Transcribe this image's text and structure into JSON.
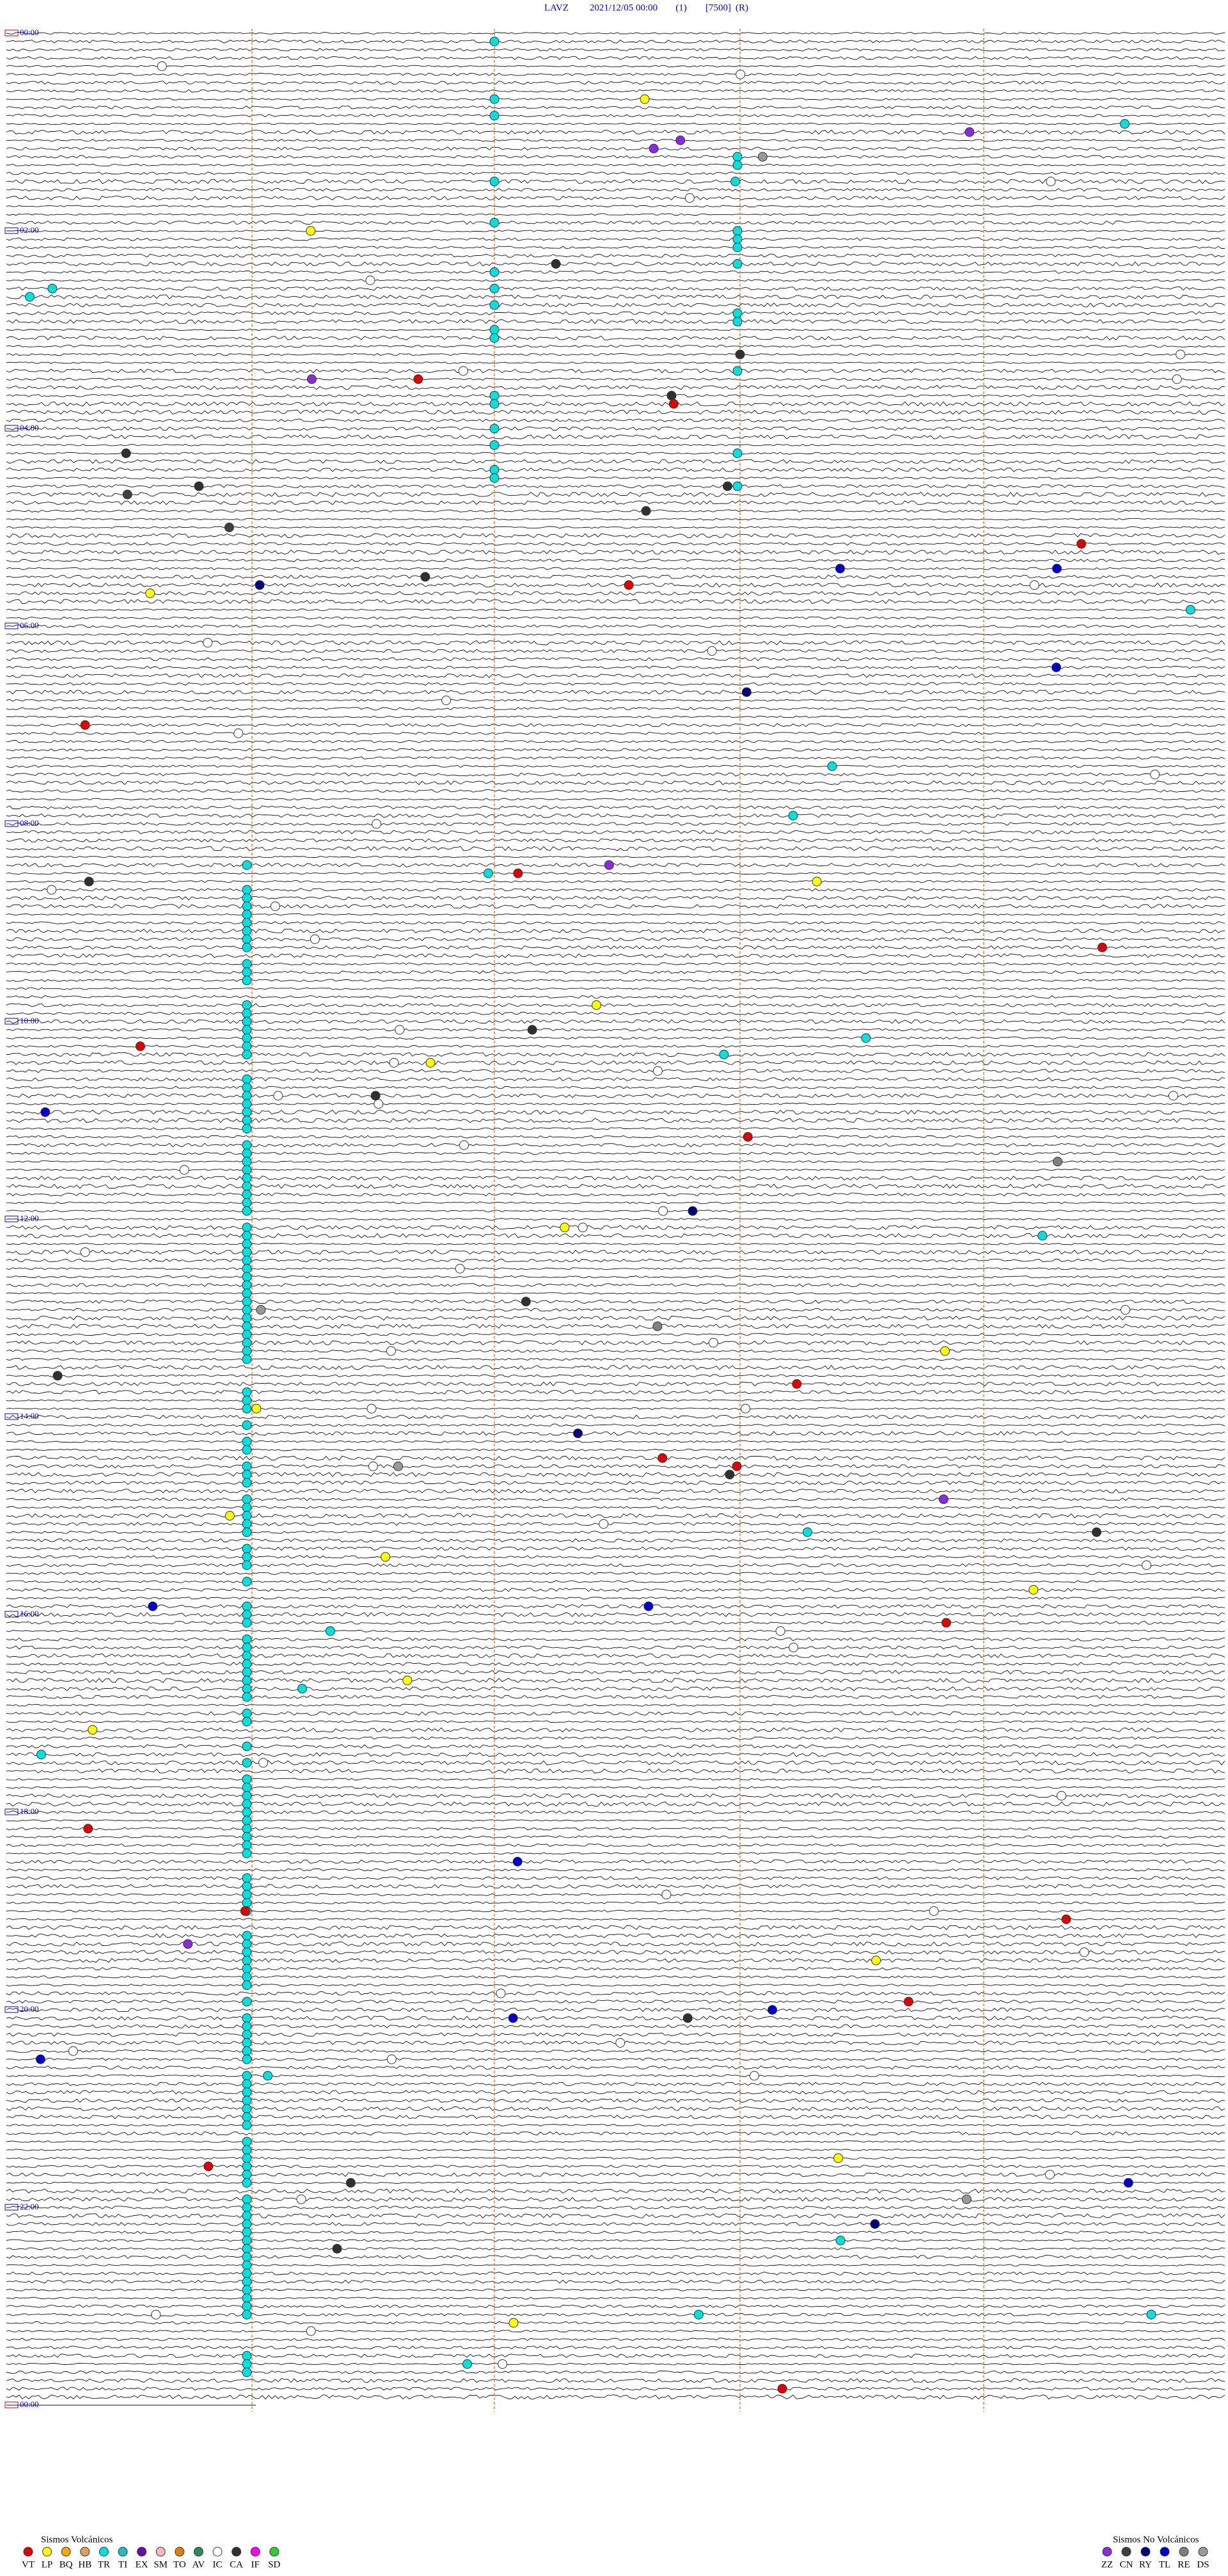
{
  "header": {
    "station": "LAVZ",
    "datetime": "2021/12/05 00:00",
    "channel": "(1)",
    "scale": "[7500]",
    "mode": "(R)"
  },
  "time_labels": [
    "00:00",
    "02:00",
    "04:00",
    "06:00",
    "08:00",
    "10:00",
    "12:00",
    "14:00",
    "16:00",
    "18:00",
    "20:00",
    "22:00",
    "00:00"
  ],
  "legend": {
    "volcanic": {
      "title": "Sismos Volcánicos",
      "items": [
        {
          "code": "VT",
          "color": "#e00000"
        },
        {
          "code": "LP",
          "color": "#ffff00"
        },
        {
          "code": "BQ",
          "color": "#ffa500"
        },
        {
          "code": "HB",
          "color": "#d9a066"
        },
        {
          "code": "TR",
          "color": "#00e0e0"
        },
        {
          "code": "TI",
          "color": "#20c0c0"
        },
        {
          "code": "EX",
          "color": "#6a0dad"
        },
        {
          "code": "SM",
          "color": "#ffb6c1"
        },
        {
          "code": "TO",
          "color": "#e08000"
        },
        {
          "code": "AV",
          "color": "#2e8b57"
        },
        {
          "code": "IC",
          "color": "#ffffff"
        },
        {
          "code": "CA",
          "color": "#303030"
        },
        {
          "code": "IF",
          "color": "#ff00ff"
        },
        {
          "code": "SD",
          "color": "#32cd32"
        }
      ]
    },
    "non_volcanic": {
      "title": "Sismos No Volcánicos",
      "items": [
        {
          "code": "ZZ",
          "color": "#8a2be2"
        },
        {
          "code": "CN",
          "color": "#404040"
        },
        {
          "code": "RY",
          "color": "#000080"
        },
        {
          "code": "TL",
          "color": "#0000cd"
        },
        {
          "code": "RE",
          "color": "#808080"
        },
        {
          "code": "DS",
          "color": "#999999"
        }
      ]
    }
  }
}
